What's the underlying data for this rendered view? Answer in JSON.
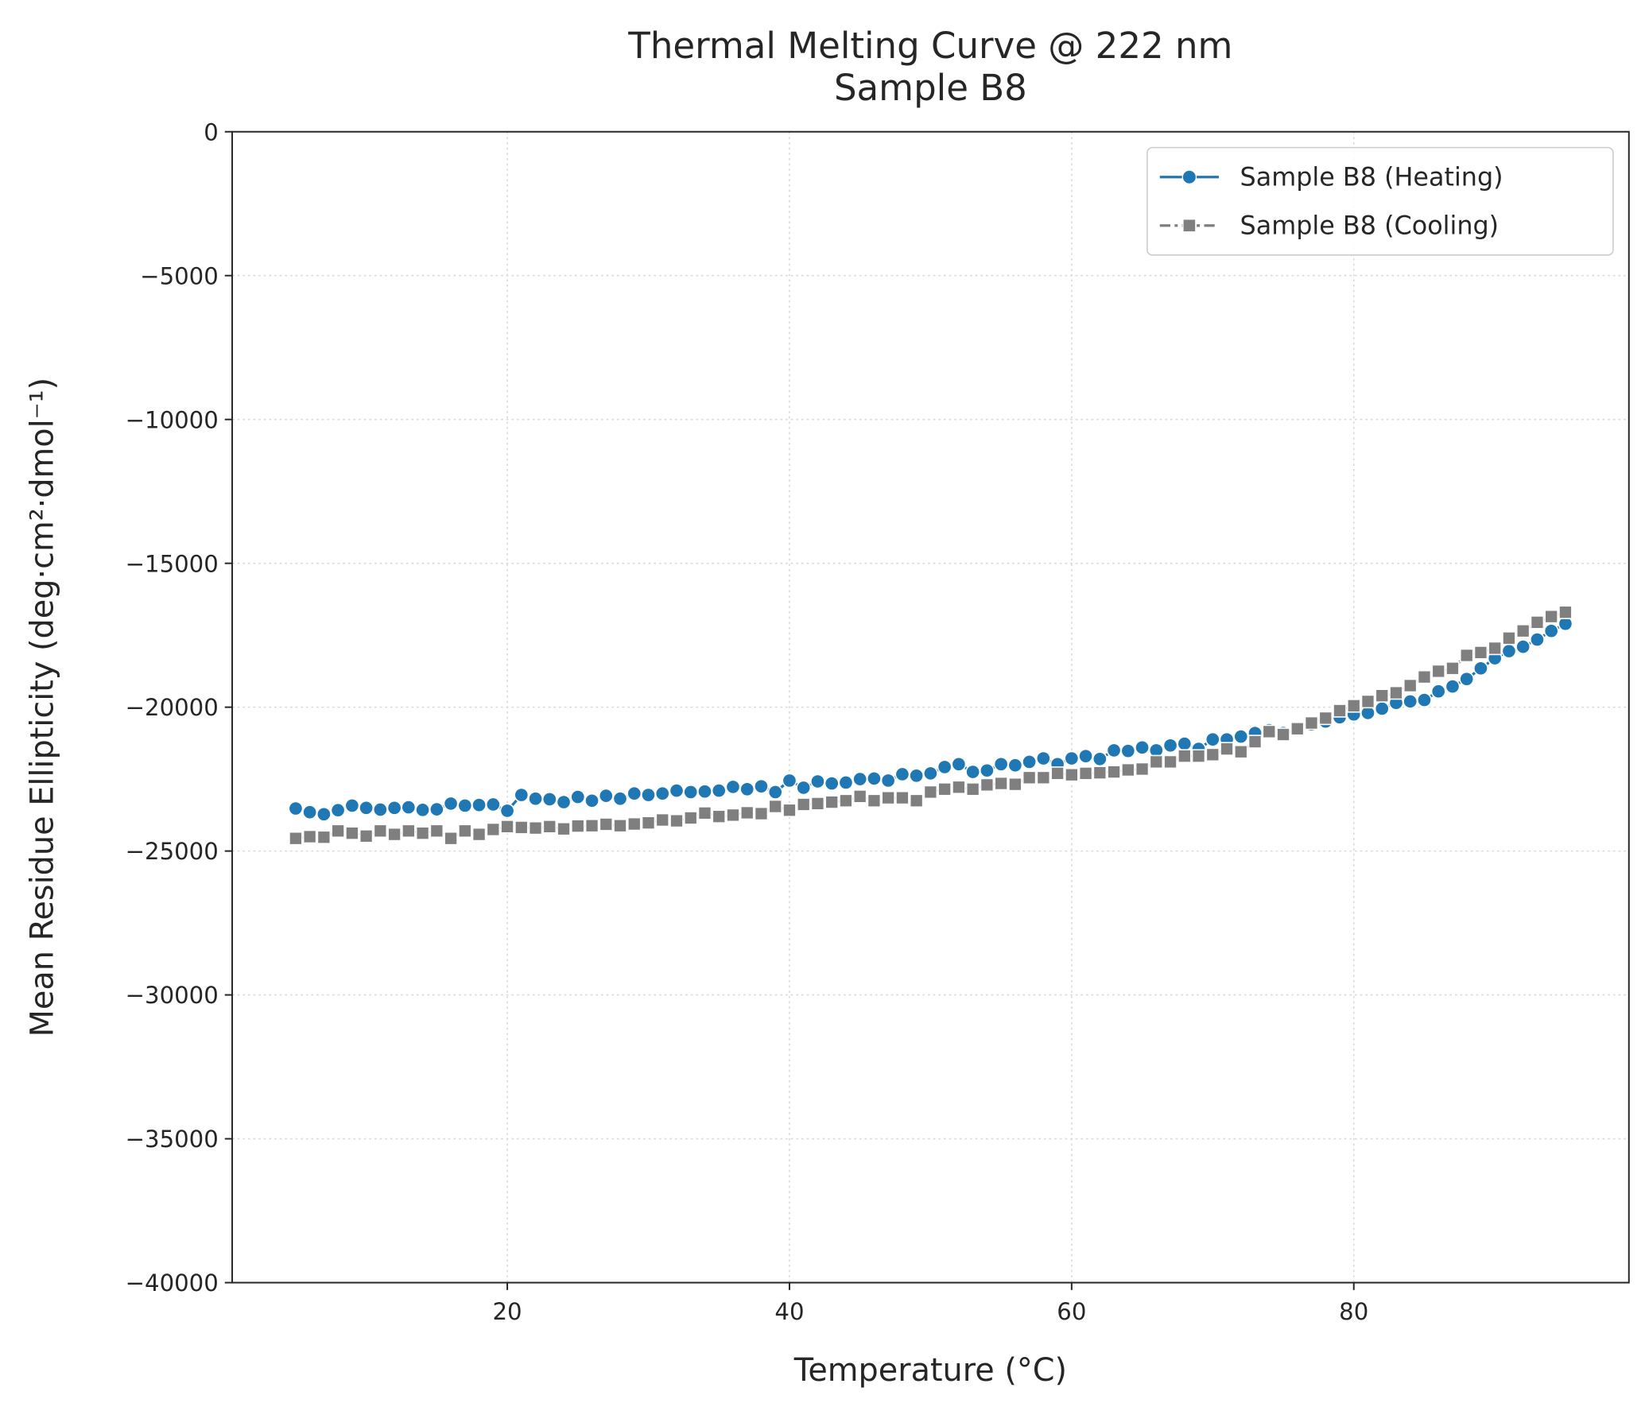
{
  "chart_data": {
    "type": "line",
    "title": "Thermal Melting Curve @ 222 nm\nSample B8",
    "x_label": "Temperature (°C)",
    "y_label": "Mean Residue Ellipticity (deg·cm²·dmol⁻¹)",
    "x": [
      5,
      6,
      7,
      8,
      9,
      10,
      11,
      12,
      13,
      14,
      15,
      16,
      17,
      18,
      19,
      20,
      21,
      22,
      23,
      24,
      25,
      26,
      27,
      28,
      29,
      30,
      31,
      32,
      33,
      34,
      35,
      36,
      37,
      38,
      39,
      40,
      41,
      42,
      43,
      44,
      45,
      46,
      47,
      48,
      49,
      50,
      51,
      52,
      53,
      54,
      55,
      56,
      57,
      58,
      59,
      60,
      61,
      62,
      63,
      64,
      65,
      66,
      67,
      68,
      69,
      70,
      71,
      72,
      73,
      74,
      75,
      76,
      77,
      78,
      79,
      80,
      81,
      82,
      83,
      84,
      85,
      86,
      87,
      88,
      89,
      90,
      91,
      92,
      93,
      94,
      95
    ],
    "series": [
      {
        "name": "Sample B8 (Heating)",
        "color": "#1f77b4",
        "marker": "circle",
        "linestyle": "solid",
        "values": [
          -23520,
          -23650,
          -23720,
          -23580,
          -23420,
          -23500,
          -23560,
          -23500,
          -23480,
          -23570,
          -23550,
          -23350,
          -23420,
          -23400,
          -23380,
          -23600,
          -23050,
          -23180,
          -23200,
          -23300,
          -23120,
          -23250,
          -23080,
          -23180,
          -23000,
          -23050,
          -23000,
          -22900,
          -22950,
          -22930,
          -22900,
          -22770,
          -22850,
          -22750,
          -22950,
          -22550,
          -22800,
          -22580,
          -22650,
          -22620,
          -22500,
          -22480,
          -22550,
          -22330,
          -22380,
          -22300,
          -22080,
          -21980,
          -22250,
          -22200,
          -21980,
          -22020,
          -21900,
          -21780,
          -21980,
          -21780,
          -21700,
          -21800,
          -21500,
          -21520,
          -21400,
          -21500,
          -21330,
          -21270,
          -21450,
          -21120,
          -21120,
          -21020,
          -20900,
          -20800,
          -20900,
          -20750,
          -20600,
          -20500,
          -20350,
          -20250,
          -20200,
          -20050,
          -19850,
          -19800,
          -19750,
          -19450,
          -19280,
          -19020,
          -18650,
          -18300,
          -18050,
          -17900,
          -17650,
          -17350,
          -17100
        ]
      },
      {
        "name": "Sample B8 (Cooling)",
        "color": "#7f7f7f",
        "marker": "square",
        "linestyle": "dashdot",
        "values": [
          -24560,
          -24500,
          -24520,
          -24300,
          -24380,
          -24480,
          -24300,
          -24420,
          -24300,
          -24380,
          -24300,
          -24560,
          -24300,
          -24420,
          -24250,
          -24150,
          -24180,
          -24200,
          -24150,
          -24230,
          -24130,
          -24120,
          -24070,
          -24120,
          -24060,
          -24020,
          -23920,
          -23950,
          -23850,
          -23680,
          -23800,
          -23750,
          -23670,
          -23700,
          -23450,
          -23580,
          -23380,
          -23350,
          -23300,
          -23250,
          -23100,
          -23250,
          -23150,
          -23150,
          -23250,
          -22950,
          -22850,
          -22780,
          -22850,
          -22700,
          -22650,
          -22680,
          -22450,
          -22450,
          -22300,
          -22350,
          -22300,
          -22280,
          -22250,
          -22180,
          -22150,
          -21900,
          -21900,
          -21700,
          -21700,
          -21650,
          -21450,
          -21550,
          -21200,
          -20850,
          -20950,
          -20750,
          -20550,
          -20380,
          -20120,
          -19950,
          -19800,
          -19600,
          -19500,
          -19250,
          -18950,
          -18750,
          -18650,
          -18200,
          -18100,
          -17950,
          -17600,
          -17350,
          -17050,
          -16850,
          -16700
        ]
      }
    ],
    "xlim": [
      0.5,
      99.5
    ],
    "xticks": [
      20,
      40,
      60,
      80
    ],
    "ylim": [
      -40000,
      0
    ],
    "yticks": [
      {
        "value": -40000,
        "label": "−40000"
      },
      {
        "value": -35000,
        "label": "−35000"
      },
      {
        "value": -30000,
        "label": "−30000"
      },
      {
        "value": -25000,
        "label": "−25000"
      },
      {
        "value": -20000,
        "label": "−20000"
      },
      {
        "value": -15000,
        "label": "−15000"
      },
      {
        "value": -10000,
        "label": "−10000"
      },
      {
        "value": -5000,
        "label": "−5000"
      },
      0
    ],
    "grid": true,
    "legend": "upper right"
  }
}
